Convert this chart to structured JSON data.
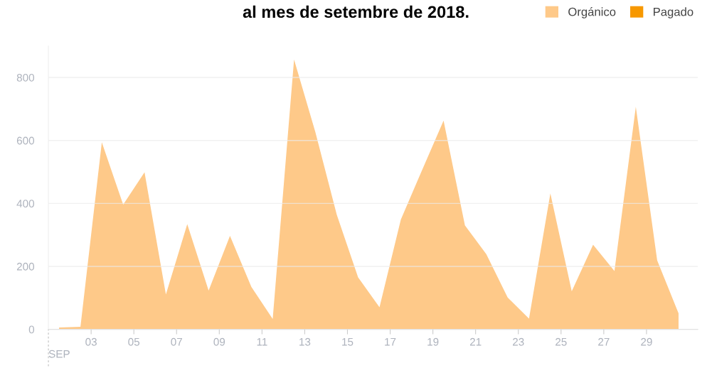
{
  "chart_data": {
    "type": "area",
    "title": "al mes de setembre de 2018.",
    "xlabel": "SEP",
    "x": [
      1.5,
      2.5,
      3.5,
      4.5,
      5.5,
      6.5,
      7.5,
      8.5,
      9.5,
      10.5,
      11.5,
      12.5,
      13.5,
      14.5,
      15.5,
      16.5,
      17.5,
      18.5,
      19.5,
      20.5,
      21.5,
      22.5,
      23.5,
      24.5,
      25.5,
      26.5,
      27.5,
      28.5,
      29.5,
      30.5
    ],
    "series": [
      {
        "name": "Orgánico",
        "color": "#fec989",
        "values": [
          6,
          8,
          594,
          396,
          499,
          111,
          334,
          123,
          297,
          135,
          33,
          857,
          626,
          364,
          165,
          70,
          349,
          507,
          663,
          330,
          239,
          101,
          34,
          432,
          121,
          269,
          185,
          707,
          219,
          51
        ]
      },
      {
        "name": "Pagado",
        "color": "#f79800",
        "values": [
          null,
          null,
          null,
          null,
          null,
          null,
          null,
          null,
          null,
          null,
          null,
          null,
          null,
          null,
          null,
          null,
          null,
          null,
          null,
          null,
          null,
          null,
          null,
          null,
          null,
          null,
          null,
          null,
          null,
          null
        ]
      }
    ],
    "xlim": [
      1,
      31.4
    ],
    "xticks": [
      {
        "value": 3,
        "label": "03"
      },
      {
        "value": 5,
        "label": "05"
      },
      {
        "value": 7,
        "label": "07"
      },
      {
        "value": 9,
        "label": "09"
      },
      11,
      13,
      15,
      17,
      19,
      21,
      23,
      25,
      27,
      29
    ],
    "ylim": [
      0,
      900
    ],
    "yticks": [
      0,
      200,
      400,
      600,
      800
    ],
    "grid": "y",
    "legend": "top right"
  }
}
